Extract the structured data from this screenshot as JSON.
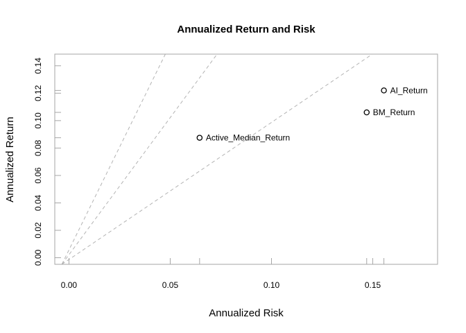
{
  "chart_data": {
    "type": "scatter",
    "title": "Annualized Return and Risk",
    "xlabel": "Annualized Risk",
    "ylabel": "Annualized Return",
    "xlim": [
      -0.007,
      0.182
    ],
    "ylim": [
      -0.0048,
      0.1485
    ],
    "x_ticks": [
      {
        "value": 0.0,
        "label": "0.00"
      },
      {
        "value": 0.05,
        "label": "0.05"
      },
      {
        "value": 0.1,
        "label": "0.10"
      },
      {
        "value": 0.15,
        "label": "0.15"
      }
    ],
    "y_ticks": [
      {
        "value": 0.0,
        "label": "0.00"
      },
      {
        "value": 0.02,
        "label": "0.02"
      },
      {
        "value": 0.04,
        "label": "0.04"
      },
      {
        "value": 0.06,
        "label": "0.06"
      },
      {
        "value": 0.08,
        "label": "0.08"
      },
      {
        "value": 0.1,
        "label": "0.10"
      },
      {
        "value": 0.12,
        "label": "0.12"
      },
      {
        "value": 0.14,
        "label": "0.14"
      }
    ],
    "points": [
      {
        "label": "Active_Median_Return",
        "x": 0.0645,
        "y": 0.0875
      },
      {
        "label": "BM_Return",
        "x": 0.147,
        "y": 0.106
      },
      {
        "label": "AI_Return",
        "x": 0.1555,
        "y": 0.122
      }
    ],
    "reference_lines": [
      {
        "origin": [
          -0.0035,
          -0.0048
        ],
        "slope": 1.0
      },
      {
        "origin": [
          -0.0035,
          -0.0048
        ],
        "slope": 2.0
      },
      {
        "origin": [
          -0.0035,
          -0.0048
        ],
        "slope": 3.0
      }
    ],
    "grid": false,
    "legend": "none",
    "colors": {
      "reference_line": "#b3b3b3",
      "box": "#a6a6a6",
      "points": "#000000"
    }
  }
}
